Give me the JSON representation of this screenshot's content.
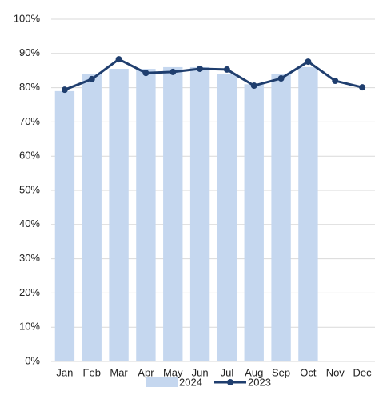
{
  "chart_data": {
    "type": "bar",
    "categories": [
      "Jan",
      "Feb",
      "Mar",
      "Apr",
      "May",
      "Jun",
      "Jul",
      "Aug",
      "Sep",
      "Oct",
      "Nov",
      "Dec"
    ],
    "series": [
      {
        "name": "2024",
        "type": "bar",
        "color": "#c5d7ef",
        "values": [
          79,
          84,
          85.5,
          85.5,
          86,
          86,
          84,
          81,
          84,
          86,
          null,
          null
        ]
      },
      {
        "name": "2023",
        "type": "line",
        "color": "#1f3e6e",
        "values": [
          79.4,
          82.5,
          88.3,
          84.3,
          84.6,
          85.5,
          85.3,
          80.6,
          82.7,
          87.6,
          82,
          80.1
        ]
      }
    ],
    "ylim": [
      0,
      100
    ],
    "yticks": [
      {
        "value": 0,
        "label": "0%"
      },
      {
        "value": 10,
        "label": "10%"
      },
      {
        "value": 20,
        "label": "20%"
      },
      {
        "value": 30,
        "label": "30%"
      },
      {
        "value": 40,
        "label": "40%"
      },
      {
        "value": 50,
        "label": "50%"
      },
      {
        "value": 60,
        "label": "60%"
      },
      {
        "value": 70,
        "label": "70%"
      },
      {
        "value": 80,
        "label": "80%"
      },
      {
        "value": 90,
        "label": "90%"
      },
      {
        "value": 100,
        "label": "100%"
      }
    ],
    "grid": true,
    "legend": "bottom"
  }
}
